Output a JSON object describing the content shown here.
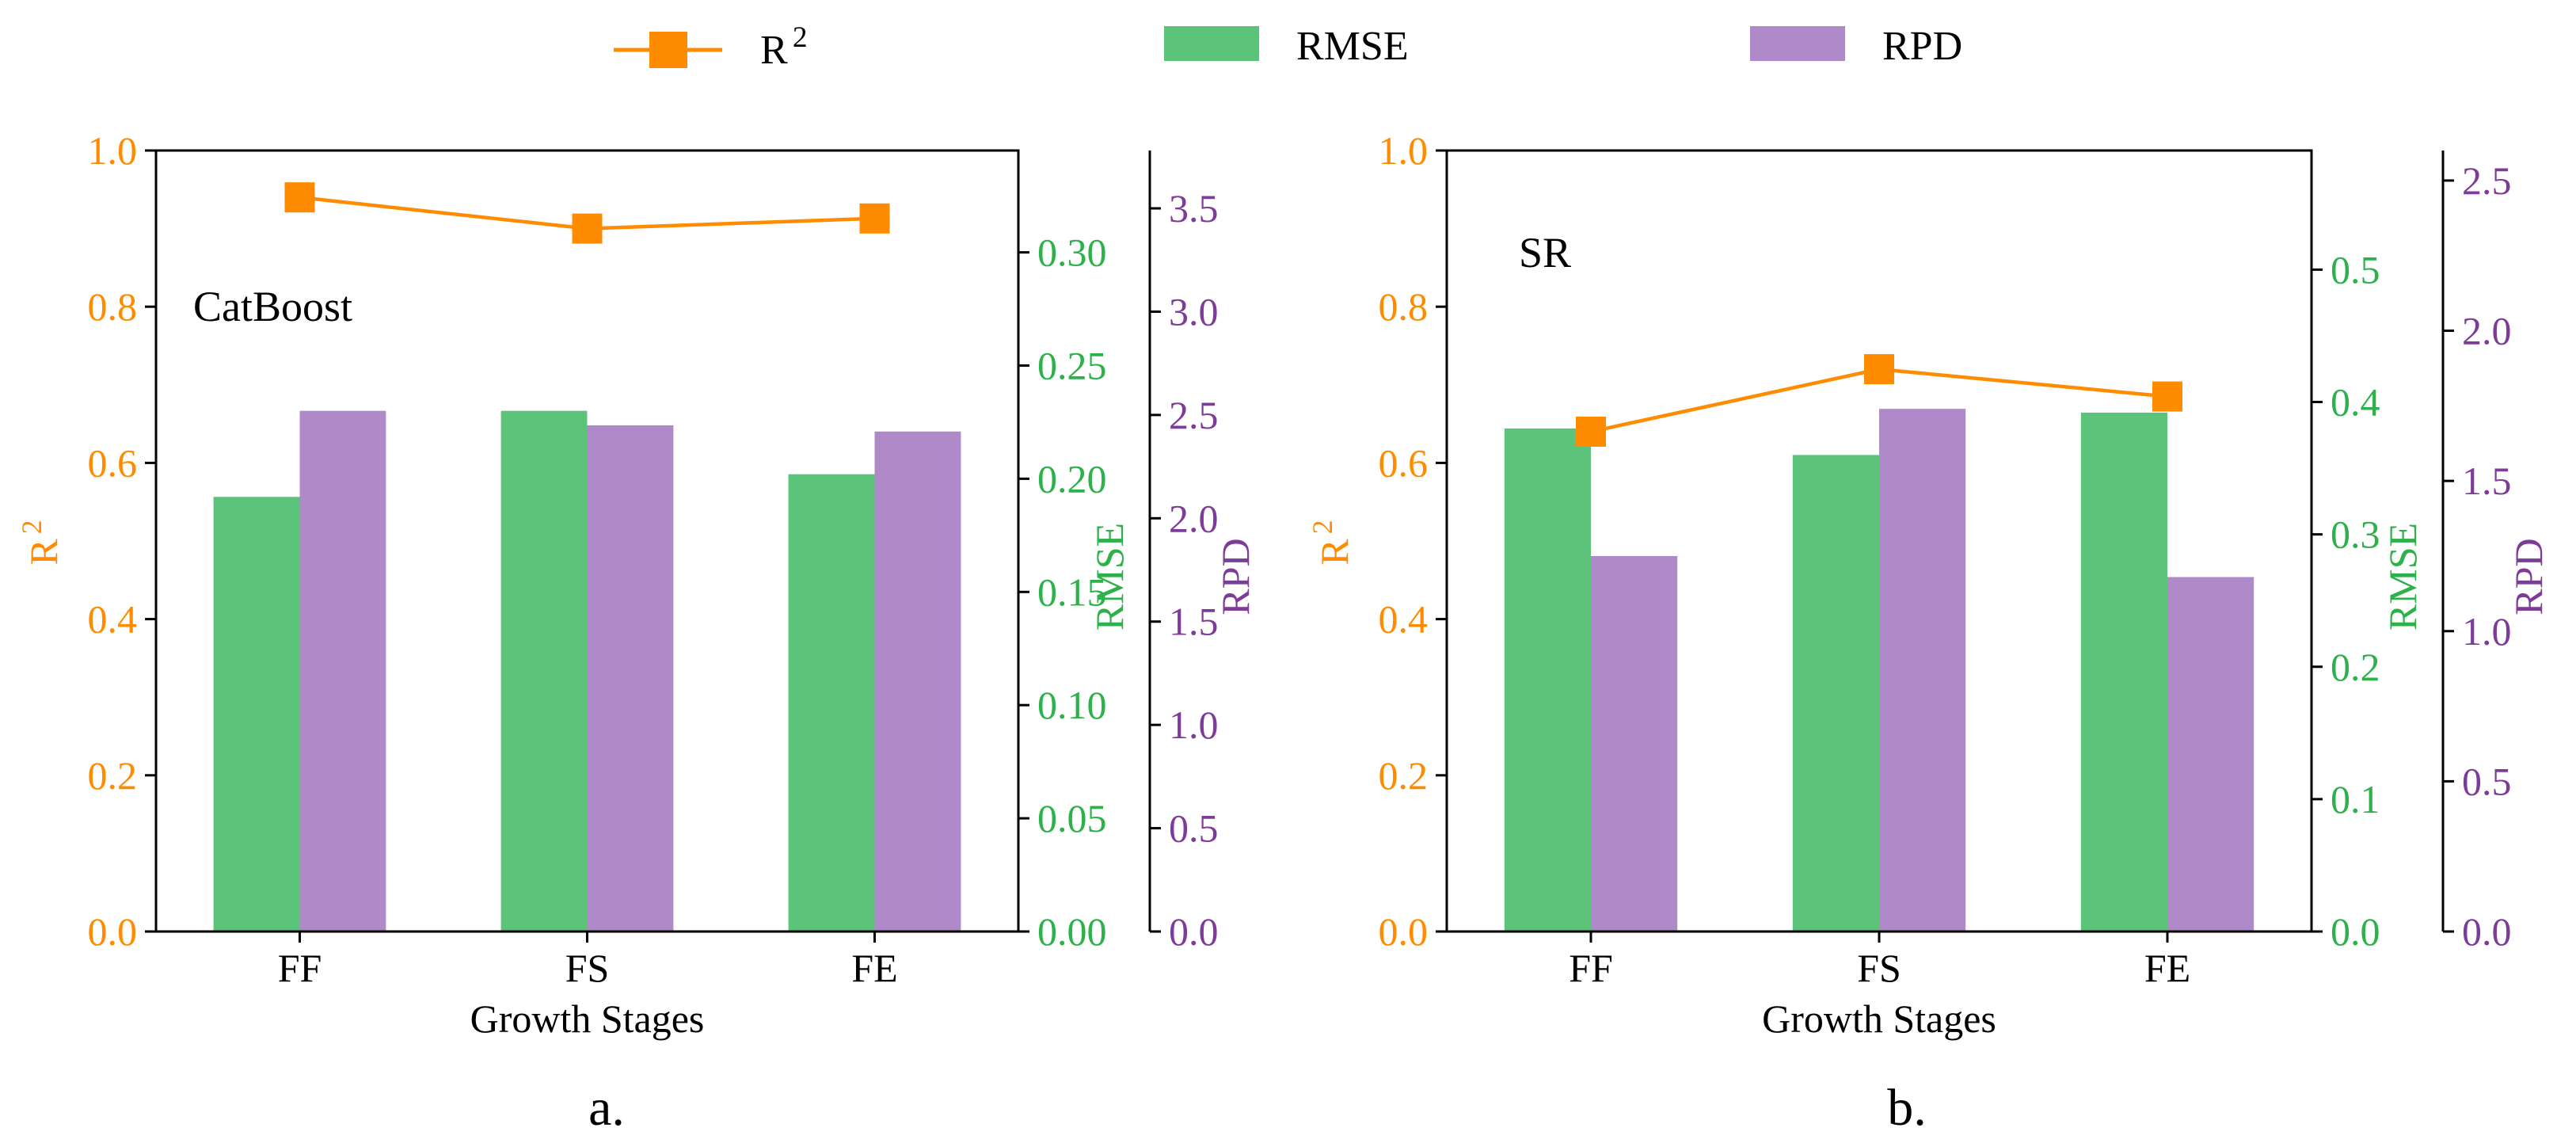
{
  "legend": [
    {
      "label": "R",
      "sup": "2",
      "color": "#ff8c00",
      "marker": "line-square"
    },
    {
      "label": "RMSE",
      "color": "#5cc47a",
      "marker": "bar"
    },
    {
      "label": "RPD",
      "color": "#b08ac8",
      "marker": "bar"
    }
  ],
  "colors": {
    "r2": "#ff8c00",
    "rmse": "#5cc47a",
    "rpd": "#b08ac8",
    "rmse_axis": "#2db14a",
    "rpd_axis": "#7d3c98"
  },
  "chart_data": [
    {
      "type": "bar+line",
      "panel_label": "a.",
      "annotation": "CatBoost",
      "categories": [
        "FF",
        "FS",
        "FE"
      ],
      "xlabel": "Growth Stages",
      "y_left": {
        "label": "R",
        "sup": "2",
        "lim": [
          0,
          1.0
        ],
        "ticks": [
          0.0,
          0.2,
          0.4,
          0.6,
          0.8,
          1.0
        ],
        "decimals": 1
      },
      "y_right1": {
        "label": "RMSE",
        "lim": [
          0,
          0.345
        ],
        "ticks": [
          0.0,
          0.05,
          0.1,
          0.15,
          0.2,
          0.25,
          0.3
        ],
        "decimals": 2
      },
      "y_right2": {
        "label": "RPD",
        "lim": [
          0,
          3.78
        ],
        "ticks": [
          0.0,
          0.5,
          1.0,
          1.5,
          2.0,
          2.5,
          3.0,
          3.5
        ],
        "decimals": 1
      },
      "series": [
        {
          "name": "R2",
          "axis": "left",
          "kind": "line",
          "values": [
            0.94,
            0.9,
            0.913
          ]
        },
        {
          "name": "RMSE",
          "axis": "right1",
          "kind": "bar",
          "values": [
            0.192,
            0.23,
            0.202
          ]
        },
        {
          "name": "RPD",
          "axis": "right2",
          "kind": "bar",
          "values": [
            2.52,
            2.45,
            2.42
          ]
        }
      ]
    },
    {
      "type": "bar+line",
      "panel_label": "b.",
      "annotation": "SR",
      "categories": [
        "FF",
        "FS",
        "FE"
      ],
      "xlabel": "Growth Stages",
      "y_left": {
        "label": "R",
        "sup": "2",
        "lim": [
          0,
          1.0
        ],
        "ticks": [
          0.0,
          0.2,
          0.4,
          0.6,
          0.8,
          1.0
        ],
        "decimals": 1
      },
      "y_right1": {
        "label": "RMSE",
        "lim": [
          0,
          0.59
        ],
        "ticks": [
          0.0,
          0.1,
          0.2,
          0.3,
          0.4,
          0.5
        ],
        "decimals": 1
      },
      "y_right2": {
        "label": "RPD",
        "lim": [
          0,
          2.6
        ],
        "ticks": [
          0.0,
          0.5,
          1.0,
          1.5,
          2.0,
          2.5
        ],
        "decimals": 1
      },
      "series": [
        {
          "name": "R2",
          "axis": "left",
          "kind": "line",
          "values": [
            0.64,
            0.72,
            0.685
          ]
        },
        {
          "name": "RMSE",
          "axis": "right1",
          "kind": "bar",
          "values": [
            0.38,
            0.36,
            0.392
          ]
        },
        {
          "name": "RPD",
          "axis": "right2",
          "kind": "bar",
          "values": [
            1.25,
            1.74,
            1.18
          ]
        }
      ]
    }
  ]
}
